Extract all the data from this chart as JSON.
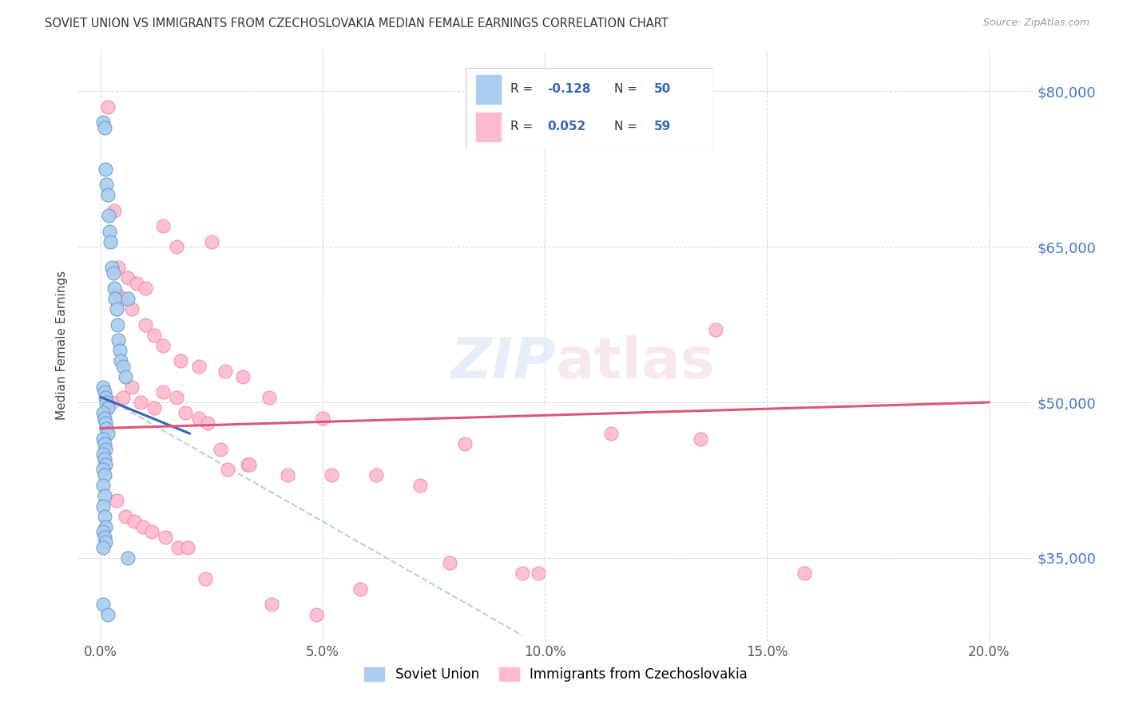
{
  "title": "SOVIET UNION VS IMMIGRANTS FROM CZECHOSLOVAKIA MEDIAN FEMALE EARNINGS CORRELATION CHART",
  "source": "Source: ZipAtlas.com",
  "ylabel": "Median Female Earnings",
  "legend_labels": [
    "Soviet Union",
    "Immigrants from Czechoslovakia"
  ],
  "r_blue": -0.128,
  "n_blue": 50,
  "r_pink": 0.052,
  "n_pink": 59,
  "blue_fill": "#aaccee",
  "pink_fill": "#ffbbcc",
  "blue_edge": "#6699cc",
  "pink_edge": "#ee88aa",
  "blue_line": "#3366bb",
  "pink_line": "#dd5577",
  "gray_dash": "#bbccdd",
  "ytick_values": [
    35000,
    50000,
    65000,
    80000
  ],
  "ytick_labels": [
    "$35,000",
    "$50,000",
    "$65,000",
    "$80,000"
  ],
  "xtick_values": [
    0.0,
    5.0,
    10.0,
    15.0,
    20.0
  ],
  "xtick_labels": [
    "0.0%",
    "5.0%",
    "10.0%",
    "15.0%",
    "20.0%"
  ],
  "xlim": [
    -0.5,
    21.0
  ],
  "ylim": [
    27000,
    84000
  ],
  "blue_x": [
    0.05,
    0.08,
    0.1,
    0.12,
    0.15,
    0.18,
    0.2,
    0.22,
    0.25,
    0.28,
    0.3,
    0.32,
    0.35,
    0.38,
    0.4,
    0.42,
    0.45,
    0.5,
    0.55,
    0.6,
    0.05,
    0.08,
    0.1,
    0.12,
    0.15,
    0.05,
    0.08,
    0.1,
    0.12,
    0.15,
    0.05,
    0.08,
    0.1,
    0.05,
    0.08,
    0.1,
    0.05,
    0.08,
    0.05,
    0.08,
    0.05,
    0.08,
    0.1,
    0.05,
    0.08,
    0.1,
    0.05,
    0.6,
    0.05,
    0.15
  ],
  "blue_y": [
    77000,
    76500,
    72500,
    71000,
    70000,
    68000,
    66500,
    65500,
    63000,
    62500,
    61000,
    60000,
    59000,
    57500,
    56000,
    55000,
    54000,
    53500,
    52500,
    60000,
    51500,
    51000,
    50500,
    50000,
    49500,
    49000,
    48500,
    48000,
    47500,
    47000,
    46500,
    46000,
    45500,
    45000,
    44500,
    44000,
    43500,
    43000,
    42000,
    41000,
    40000,
    39000,
    38000,
    37500,
    37000,
    36500,
    36000,
    35000,
    30500,
    29500
  ],
  "pink_x": [
    0.15,
    0.3,
    2.5,
    1.4,
    1.7,
    0.4,
    0.6,
    0.8,
    1.0,
    0.35,
    0.5,
    0.7,
    1.0,
    1.2,
    1.4,
    1.8,
    2.2,
    2.8,
    3.2,
    3.8,
    5.0,
    0.25,
    0.5,
    0.7,
    0.9,
    1.2,
    1.4,
    1.7,
    1.9,
    2.2,
    2.4,
    2.7,
    3.3,
    4.2,
    5.2,
    6.2,
    7.2,
    8.2,
    9.5,
    11.5,
    13.5,
    0.35,
    0.55,
    0.75,
    0.95,
    1.15,
    1.45,
    1.75,
    1.95,
    2.35,
    2.85,
    3.35,
    3.85,
    4.85,
    5.85,
    7.85,
    9.85,
    13.85,
    15.85
  ],
  "pink_y": [
    78500,
    68500,
    65500,
    67000,
    65000,
    63000,
    62000,
    61500,
    61000,
    60500,
    60000,
    59000,
    57500,
    56500,
    55500,
    54000,
    53500,
    53000,
    52500,
    50500,
    48500,
    50000,
    50500,
    51500,
    50000,
    49500,
    51000,
    50500,
    49000,
    48500,
    48000,
    45500,
    44000,
    43000,
    43000,
    43000,
    42000,
    46000,
    33500,
    47000,
    46500,
    40500,
    39000,
    38500,
    38000,
    37500,
    37000,
    36000,
    36000,
    33000,
    43500,
    44000,
    30500,
    29500,
    32000,
    34500,
    33500,
    57000,
    33500
  ],
  "blue_trend_x": [
    0.0,
    2.0
  ],
  "blue_trend_y": [
    50500,
    47000
  ],
  "gray_trend_x": [
    0.5,
    9.5
  ],
  "gray_trend_y": [
    49500,
    27500
  ],
  "pink_trend_x": [
    0.0,
    20.0
  ],
  "pink_trend_y": [
    47500,
    50000
  ]
}
